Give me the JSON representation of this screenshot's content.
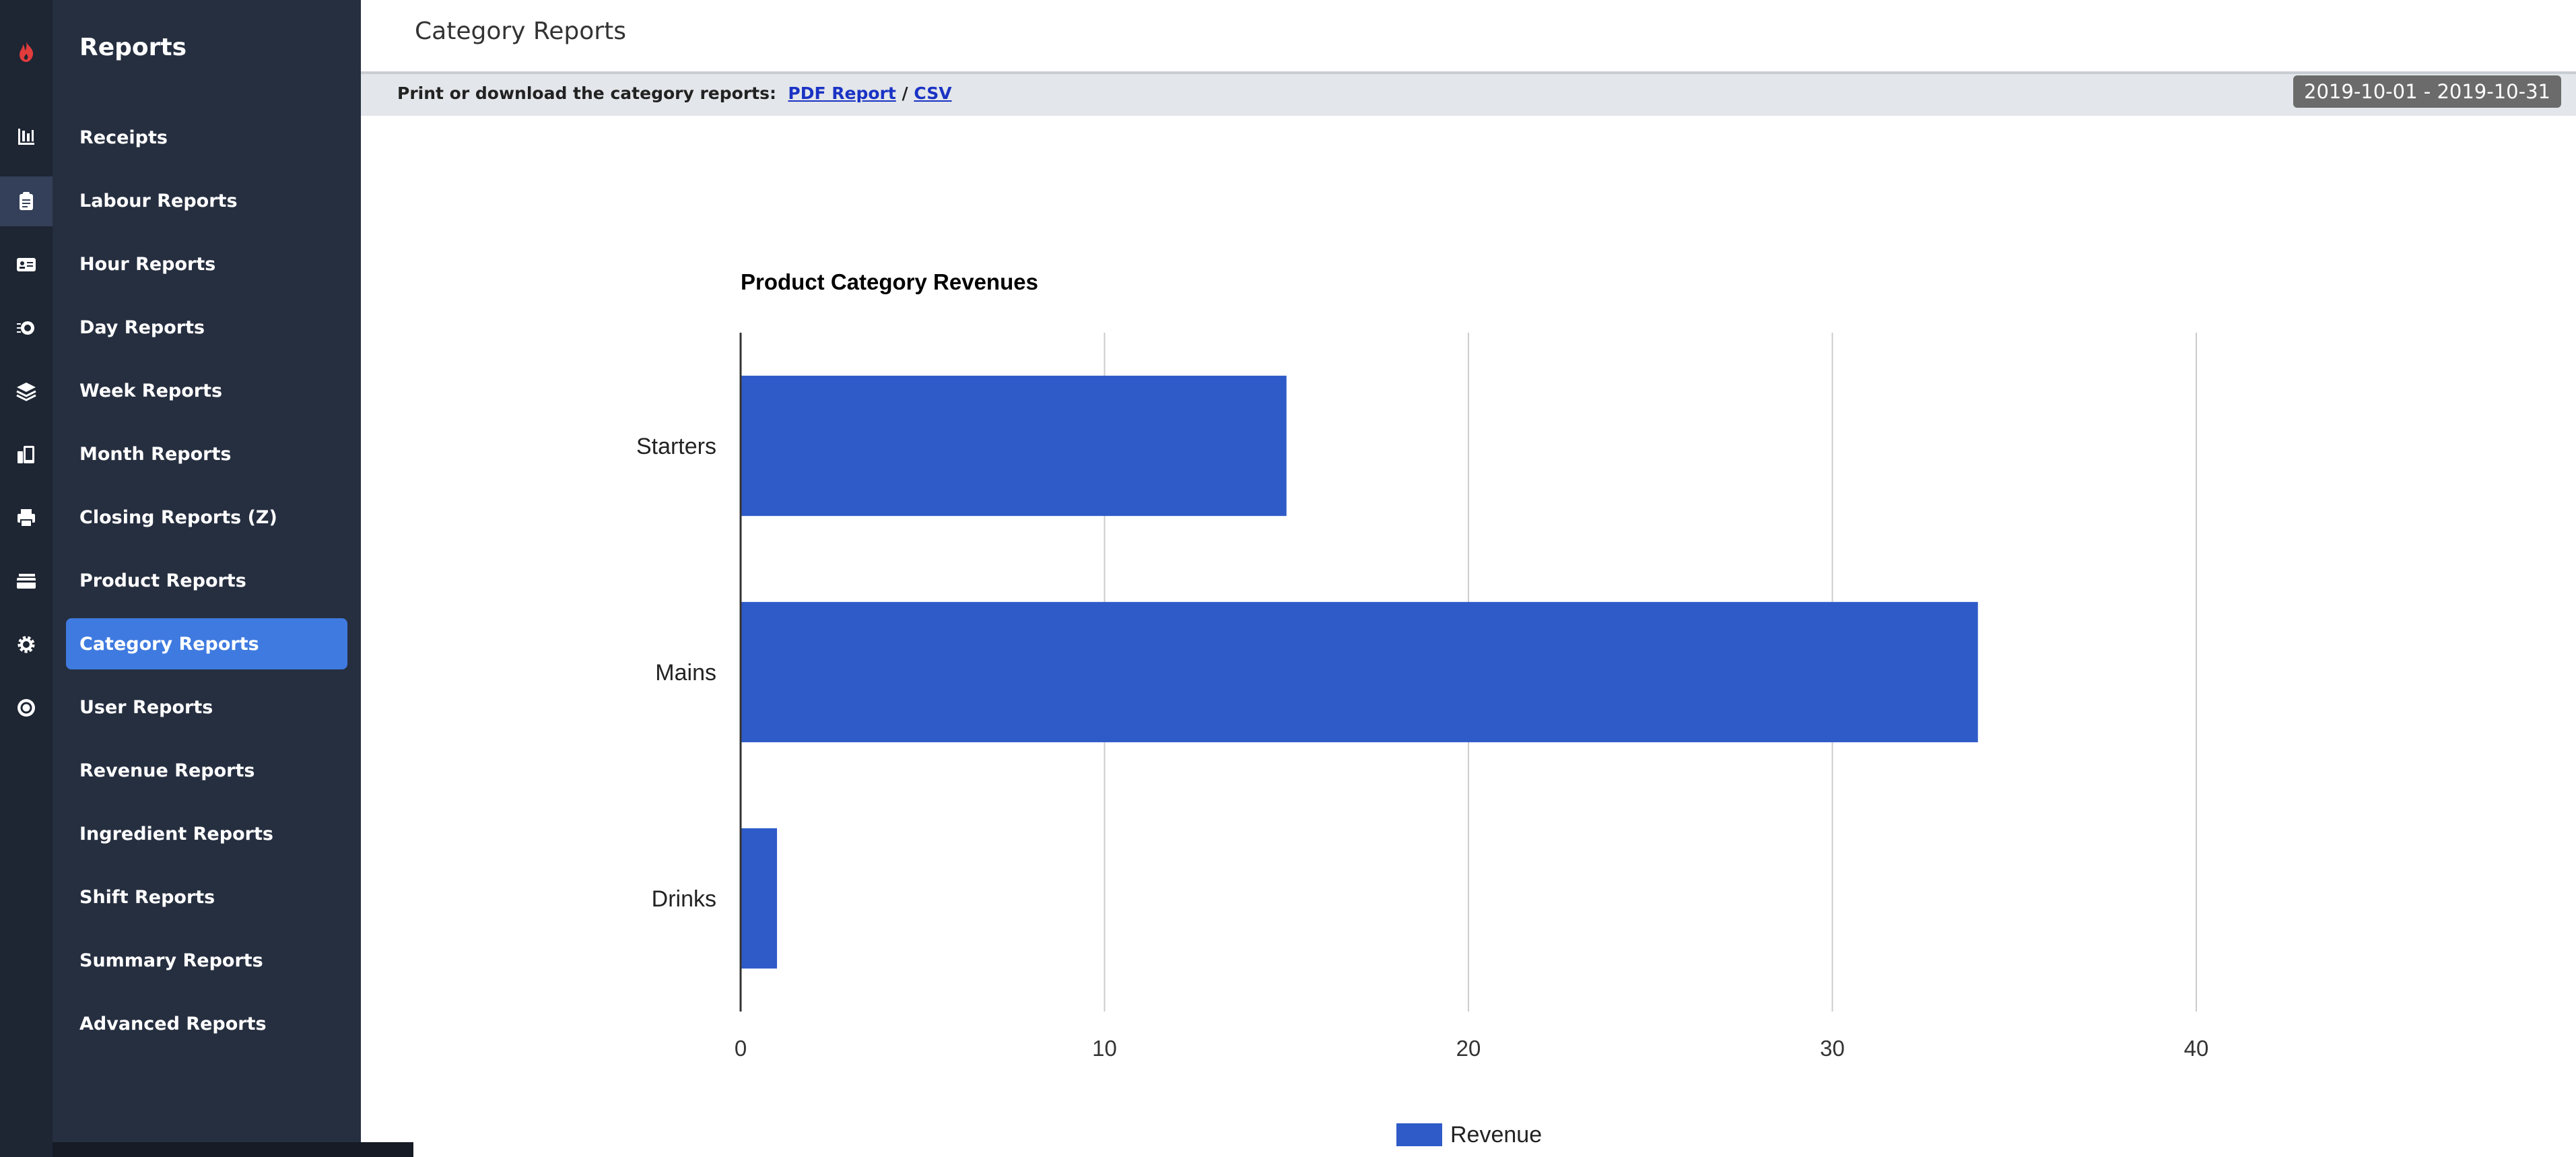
{
  "app": {
    "section_title": "Reports",
    "brand_color": "#e03c3c"
  },
  "rail": {
    "icons": [
      "bar-chart-icon",
      "clipboard-icon",
      "id-card-icon",
      "coins-icon",
      "layers-icon",
      "devices-icon",
      "printer-icon",
      "cards-icon",
      "gear-icon",
      "help-icon"
    ],
    "active_index": 1
  },
  "nav": {
    "items": [
      {
        "label": "Receipts",
        "active": false
      },
      {
        "label": "Labour Reports",
        "active": false
      },
      {
        "label": "Hour Reports",
        "active": false
      },
      {
        "label": "Day Reports",
        "active": false
      },
      {
        "label": "Week Reports",
        "active": false
      },
      {
        "label": "Month Reports",
        "active": false
      },
      {
        "label": "Closing Reports (Z)",
        "active": false
      },
      {
        "label": "Product Reports",
        "active": false
      },
      {
        "label": "Category Reports",
        "active": true
      },
      {
        "label": "User Reports",
        "active": false
      },
      {
        "label": "Revenue Reports",
        "active": false
      },
      {
        "label": "Ingredient Reports",
        "active": false
      },
      {
        "label": "Shift Reports",
        "active": false
      },
      {
        "label": "Summary Reports",
        "active": false
      },
      {
        "label": "Advanced Reports",
        "active": false
      }
    ],
    "active_color": "#3f7ae0"
  },
  "header": {
    "title": "Category Reports"
  },
  "toolbar": {
    "prompt": "Print or download the category reports:",
    "pdf_label": "PDF Report",
    "separator": "/",
    "csv_label": "CSV",
    "date_range": "2019-10-01 - 2019-10-31"
  },
  "chart_data": {
    "type": "bar",
    "orientation": "horizontal",
    "title": "Product Category Revenues",
    "categories": [
      "Starters",
      "Mains",
      "Drinks"
    ],
    "series": [
      {
        "name": "Revenue",
        "values": [
          15,
          34,
          1
        ],
        "color": "#2e5bc8"
      }
    ],
    "xlim": [
      0,
      40
    ],
    "x_ticks": [
      0,
      10,
      20,
      30,
      40
    ],
    "grid": true,
    "legend": "bottom-center"
  }
}
